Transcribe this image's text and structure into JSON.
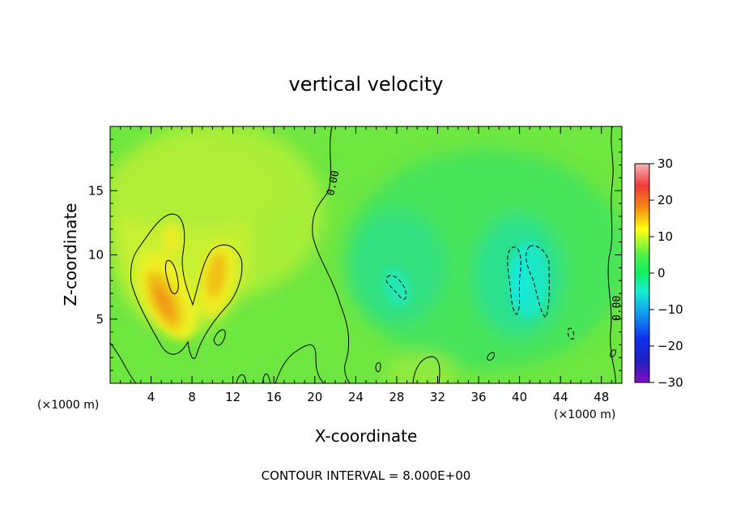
{
  "chart_data": {
    "type": "heatmap",
    "title": "vertical velocity",
    "xlabel": "X-coordinate",
    "ylabel": "Z-coordinate",
    "x_unit": "(×1000 m)",
    "x_unit_secondary": "(×1000 m)",
    "xlim": [
      0,
      50
    ],
    "ylim": [
      0,
      20
    ],
    "xticks": [
      "4",
      "8",
      "12",
      "16",
      "20",
      "24",
      "28",
      "32",
      "36",
      "40",
      "44",
      "48"
    ],
    "yticks": [
      "5",
      "10",
      "15"
    ],
    "colorbar": {
      "range": [
        -30,
        30
      ],
      "ticks": [
        "30",
        "20",
        "10",
        "0",
        "−10",
        "−20",
        "−30"
      ]
    },
    "contour_interval_text": "CONTOUR INTERVAL = 8.000E+00",
    "contour_labels": [
      "0.00",
      "0.00"
    ],
    "features": [
      {
        "kind": "updraft",
        "x": 5.5,
        "z": 6.5,
        "max": 20
      },
      {
        "kind": "updraft",
        "x": 10.5,
        "z": 8.5,
        "max": 14
      },
      {
        "kind": "downdraft",
        "x": 28,
        "z": 7.5,
        "min": -9
      },
      {
        "kind": "downdraft",
        "x": 41,
        "z": 8,
        "min": -11
      }
    ],
    "background_value": 4
  }
}
